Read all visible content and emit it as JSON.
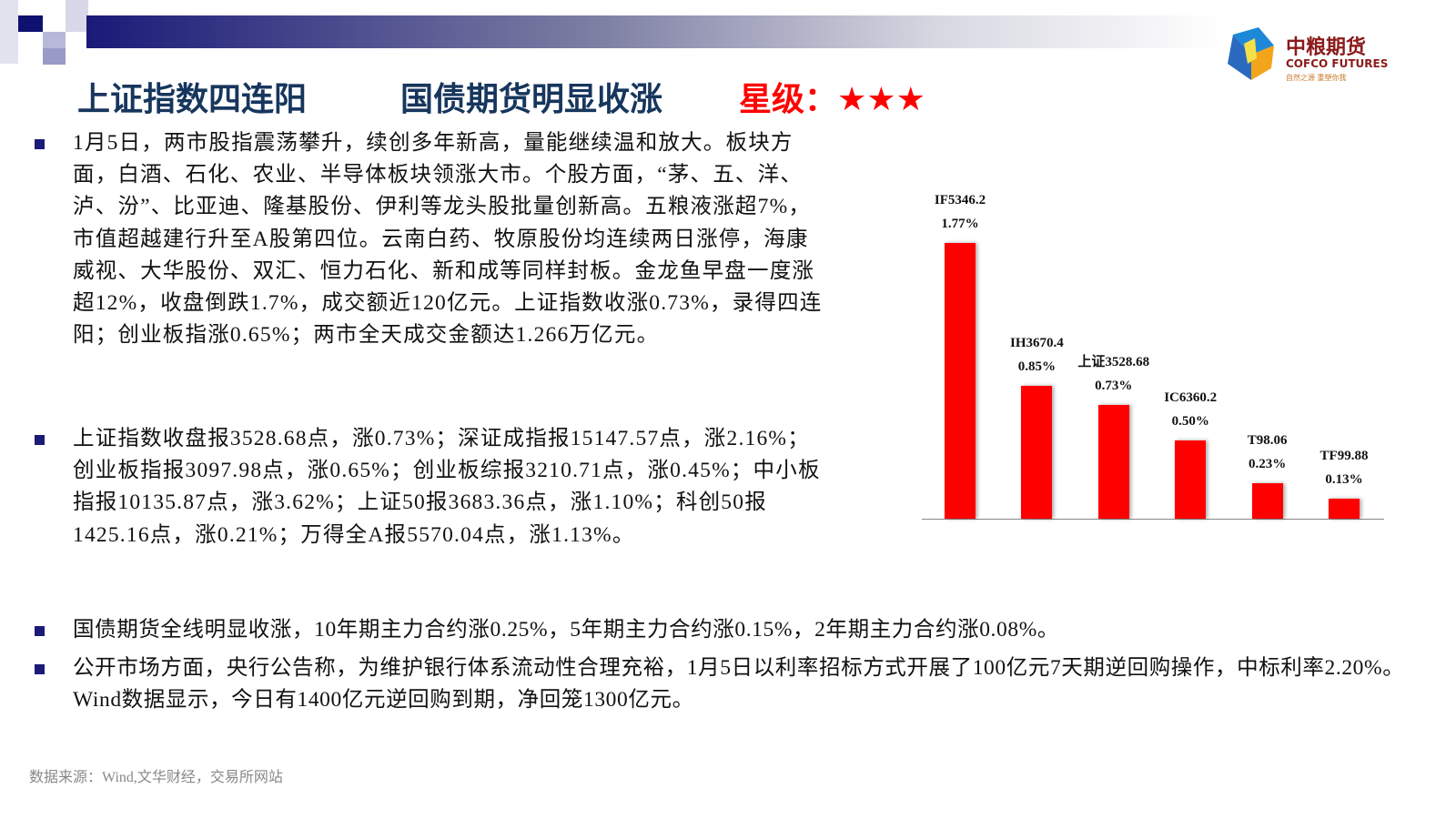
{
  "header": {
    "title_1": "上证指数四连阳",
    "title_2": "国债期货明显收涨",
    "rating_label": "星级：",
    "rating_stars": "★★★",
    "rating_value": 3,
    "logo": {
      "cn": "中粮期货",
      "en": "COFCO FUTURES",
      "slogan": "自然之源 重塑你我"
    }
  },
  "bullets": [
    "1月5日，两市股指震荡攀升，续创多年新高，量能继续温和放大。板块方面，白酒、石化、农业、半导体板块领涨大市。个股方面，“茅、五、洋、泸、汾”、比亚迪、隆基股份、伊利等龙头股批量创新高。五粮液涨超7%，市值超越建行升至A股第四位。云南白药、牧原股份均连续两日涨停，海康威视、大华股份、双汇、恒力石化、新和成等同样封板。金龙鱼早盘一度涨超12%，收盘倒跌1.7%，成交额近120亿元。上证指数收涨0.73%，录得四连阳；创业板指涨0.65%；两市全天成交金额达1.266万亿元。",
    "上证指数收盘报3528.68点，涨0.73%；深证成指报15147.57点，涨2.16%；创业板指报3097.98点，涨0.65%；创业板综报3210.71点，涨0.45%；中小板指报10135.87点，涨3.62%；上证50报3683.36点，涨1.10%；科创50报1425.16点，涨0.21%；万得全A报5570.04点，涨1.13%。",
    "国债期货全线明显收涨，10年期主力合约涨0.25%，5年期主力合约涨0.15%，2年期主力合约涨0.08%。",
    "公开市场方面，央行公告称，为维护银行体系流动性合理充裕，1月5日以利率招标方式开展了100亿元7天期逆回购操作，中标利率2.20%。Wind数据显示，今日有1400亿元逆回购到期，净回笼1300亿元。"
  ],
  "source": "数据来源：Wind,文华财经，交易所网站",
  "chart_data": {
    "type": "bar",
    "categories": [
      "IF5346.2",
      "IH3670.4",
      "上证3528.68",
      "IC6360.2",
      "T98.06",
      "TF99.88"
    ],
    "values": [
      1.77,
      0.85,
      0.73,
      0.5,
      0.23,
      0.13
    ],
    "data_labels": [
      "1.77%",
      "0.85%",
      "0.73%",
      "0.50%",
      "0.23%",
      "0.13%"
    ],
    "ylim": [
      0,
      1.77
    ],
    "grid": false,
    "bar_color": "#ff0000"
  }
}
